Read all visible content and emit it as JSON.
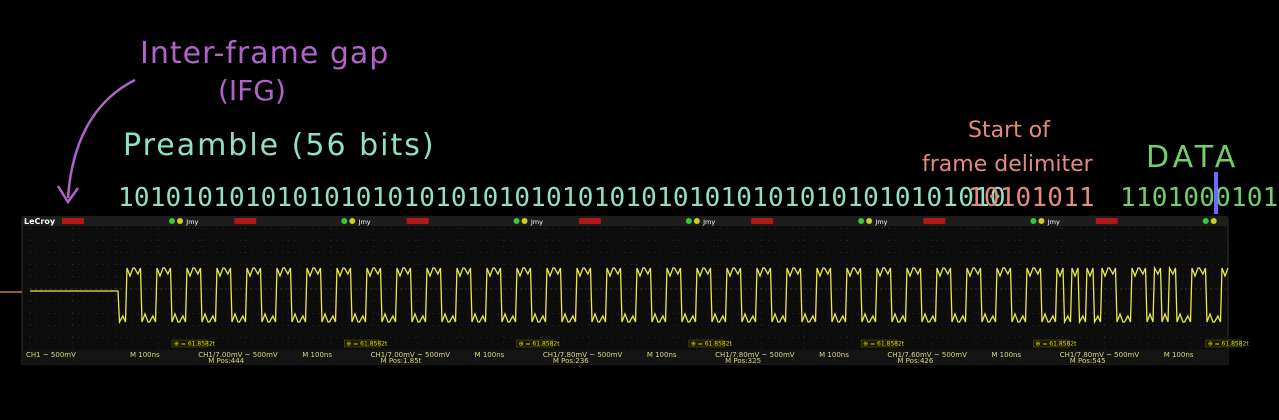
{
  "annotations": {
    "ifg_title": "Inter-frame gap",
    "ifg_abbr": "(IFG)",
    "preamble": "Preamble (56 bits)",
    "sfd_line1": "Start of",
    "sfd_line2": "frame delimiter",
    "data": "DATA"
  },
  "bits": {
    "preamble": "10101010101010101010101010101010101010101010101010101010",
    "sfd": "10101011",
    "data": "1101000101"
  },
  "colors": {
    "ifg": "#b163c9",
    "preamble": "#8fe0c4",
    "sfd": "#e58a7e",
    "data": "#6fd06a",
    "trace": "#e8e84a",
    "arrow": "#b163c9"
  },
  "scope": {
    "brand": "LeCroy",
    "panels": [
      {
        "ch": "CH1 ~ 500mV",
        "time": "M 100ns",
        "pos": "",
        "meas": "⊕ = 61.8582t"
      },
      {
        "ch": "CH1/7.00mV ~ 500mV",
        "time": "M 100ns",
        "pos": "M Pos:444",
        "meas": "⊕ = 61.8582t"
      },
      {
        "ch": "CH1/7.00mV ~ 500mV",
        "time": "M 100ns",
        "pos": "M Pos:1.85t",
        "meas": "⊕ = 61.8582t"
      },
      {
        "ch": "CH1/7.80mV ~ 500mV",
        "time": "M 100ns",
        "pos": "M Pos:236",
        "meas": "⊕ = 61.8582t"
      },
      {
        "ch": "CH1/7.80mV ~ 500mV",
        "time": "M 100ns",
        "pos": "M Pos:325",
        "meas": "⊕ = 61.8582t"
      },
      {
        "ch": "CH1/7.60mV ~ 500mV",
        "time": "M 100ns",
        "pos": "M Pos:426",
        "meas": "⊕ = 61.8582t"
      },
      {
        "ch": "CH1/7.80mV ~ 500mV",
        "time": "M 100ns",
        "pos": "M Pos:545",
        "meas": "⊕ = 61.8582t"
      }
    ],
    "tab_label": "Jmy"
  },
  "trace_bits": "10101010101010101010101010101010101010101010101010101010101010111101000101"
}
